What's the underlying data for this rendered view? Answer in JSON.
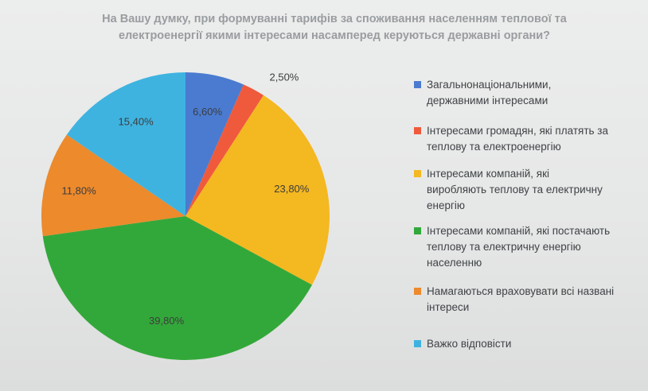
{
  "chart_data": {
    "type": "pie",
    "title_lines": [
      "На Вашу думку, при формуванні тарифів за споживання населенням теплової та",
      "електроенергії якими інтересами насамперед керуються державні органи?"
    ],
    "slices": [
      {
        "label_lines": [
          "Загальнонаціональними,",
          "державними інтересами"
        ],
        "value": 6.6,
        "value_label": "6,60%",
        "color": "#4a7bd0"
      },
      {
        "label_lines": [
          "Інтересами громадян, які платять за",
          "теплову та електроенергію"
        ],
        "value": 2.5,
        "value_label": "2,50%",
        "color": "#ef5a3c"
      },
      {
        "label_lines": [
          "Інтересами компаній, які",
          "виробляють теплову та електричну",
          "енергію"
        ],
        "value": 23.8,
        "value_label": "23,80%",
        "color": "#f4b820"
      },
      {
        "label_lines": [
          "Інтересами компаній, які постачають",
          "теплову та електричну енергію",
          "населенню"
        ],
        "value": 39.8,
        "value_label": "39,80%",
        "color": "#33a83a"
      },
      {
        "label_lines": [
          "Намагаються враховувати всі названі",
          "інтереси"
        ],
        "value": 11.8,
        "value_label": "11,80%",
        "color": "#ec8a2c"
      },
      {
        "label_lines": [
          "Важко відповісти"
        ],
        "value": 15.4,
        "value_label": "15,40%",
        "color": "#3eb3e0"
      }
    ],
    "legend_position": "right"
  }
}
